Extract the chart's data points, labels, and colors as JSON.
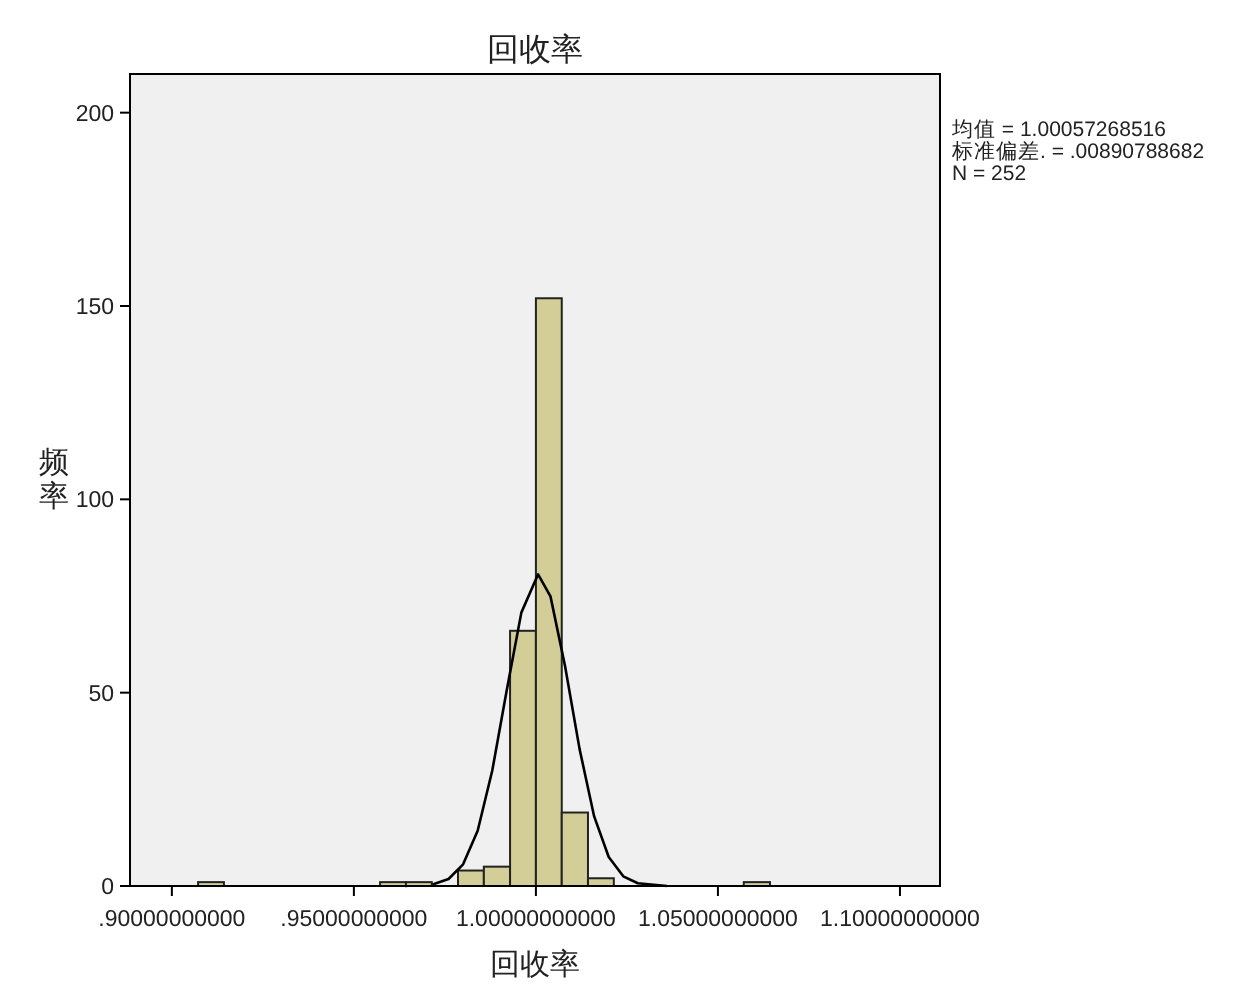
{
  "chart_data": {
    "type": "histogram",
    "title": "回收率",
    "xlabel": "回收率",
    "ylabel": "频率",
    "bins": [
      0.9072,
      0.9143,
      0.9214,
      0.9286,
      0.9357,
      0.9429,
      0.95,
      0.9572,
      0.9643,
      0.9714,
      0.9786,
      0.9857,
      0.9929,
      1.0,
      1.0071,
      1.0143,
      1.0214,
      1.0286,
      1.0357,
      1.0428,
      1.05,
      1.0571,
      1.0643
    ],
    "values": [
      1,
      0,
      0,
      0,
      0,
      0,
      0,
      1,
      1,
      0,
      4,
      5,
      66,
      152,
      19,
      2,
      0,
      0,
      0,
      0,
      0,
      1
    ],
    "color": "#d3ce97",
    "series": [
      {
        "type": "line",
        "color": "#000000",
        "x": [
          0.964,
          0.972,
          0.976,
          0.98,
          0.984,
          0.988,
          0.992,
          0.996,
          1.0006,
          1.004,
          1.008,
          1.012,
          1.016,
          1.02,
          1.024,
          1.028,
          1.036
        ],
        "values": [
          0,
          0.5,
          1.8,
          5.6,
          14.3,
          29.8,
          50.7,
          70.7,
          80.6,
          74.9,
          56.9,
          35.4,
          18,
          7.5,
          2.5,
          0.7,
          0
        ]
      }
    ],
    "xlim": [
      0.8885,
      1.111
    ],
    "xticks": [
      {
        "value": 0.9,
        "label": ".90000000000"
      },
      {
        "value": 0.95,
        "label": ".95000000000"
      },
      {
        "value": 1.0,
        "label": "1.00000000000"
      },
      {
        "value": 1.05,
        "label": "1.05000000000"
      },
      {
        "value": 1.1,
        "label": "1.10000000000"
      }
    ],
    "ylim": [
      0,
      210
    ],
    "yticks": [
      0,
      50,
      100,
      150,
      200
    ],
    "grid": false,
    "annotations": [
      "均值 = 1.00057268516",
      "标准偏差. = .00890788682",
      "N = 252"
    ]
  }
}
